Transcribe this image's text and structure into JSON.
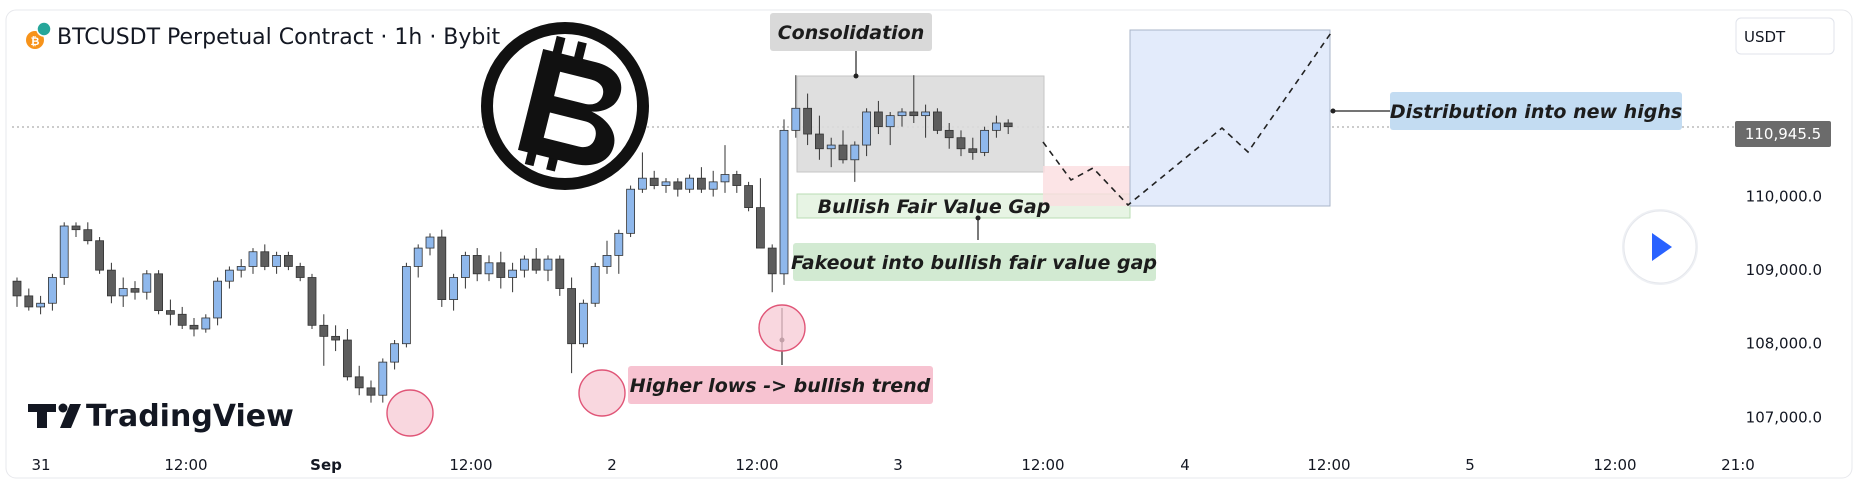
{
  "header": {
    "title": "BTCUSDT Perpetual Contract · 1h · Bybit",
    "currency_button": "USDT"
  },
  "logo": {
    "text": "TradingView"
  },
  "chart_data": {
    "type": "candlestick",
    "symbol": "BTCUSDT",
    "timeframe": "1h",
    "exchange": "Bybit",
    "x_ticks": [
      "31",
      "12:00",
      "Sep",
      "12:00",
      "2",
      "12:00",
      "3",
      "12:00",
      "4",
      "12:00",
      "5",
      "12:00",
      "21:0"
    ],
    "y_ticks": [
      "110,000.0",
      "109,000.0",
      "108,000.0",
      "107,000.0"
    ],
    "last_price_label": "110,945.5",
    "last_price": 110945.5,
    "y_range": [
      106800,
      112400
    ],
    "colors": {
      "up": "#8fb8ec",
      "down": "#5d5d5d",
      "wick": "#333333"
    },
    "candles": [
      [
        108850,
        108900,
        108500,
        108650
      ],
      [
        108650,
        108750,
        108450,
        108500
      ],
      [
        108500,
        108650,
        108400,
        108550
      ],
      [
        108550,
        108950,
        108450,
        108900
      ],
      [
        108900,
        109650,
        108800,
        109600
      ],
      [
        109600,
        109650,
        109450,
        109550
      ],
      [
        109550,
        109650,
        109350,
        109400
      ],
      [
        109400,
        109450,
        108950,
        109000
      ],
      [
        109000,
        109100,
        108550,
        108650
      ],
      [
        108650,
        108900,
        108500,
        108750
      ],
      [
        108750,
        108850,
        108600,
        108700
      ],
      [
        108700,
        109000,
        108600,
        108950
      ],
      [
        108950,
        109000,
        108400,
        108450
      ],
      [
        108450,
        108600,
        108250,
        108400
      ],
      [
        108400,
        108500,
        108200,
        108250
      ],
      [
        108250,
        108350,
        108100,
        108200
      ],
      [
        108200,
        108400,
        108150,
        108350
      ],
      [
        108350,
        108900,
        108250,
        108850
      ],
      [
        108850,
        109050,
        108750,
        109000
      ],
      [
        109000,
        109150,
        108900,
        109050
      ],
      [
        109050,
        109300,
        108950,
        109250
      ],
      [
        109250,
        109350,
        109000,
        109050
      ],
      [
        109050,
        109250,
        108950,
        109200
      ],
      [
        109200,
        109250,
        109000,
        109050
      ],
      [
        109050,
        109100,
        108850,
        108900
      ],
      [
        108900,
        108950,
        108200,
        108250
      ],
      [
        108250,
        108400,
        107700,
        108100
      ],
      [
        108100,
        108250,
        107900,
        108050
      ],
      [
        108050,
        108200,
        107500,
        107550
      ],
      [
        107550,
        107700,
        107300,
        107400
      ],
      [
        107400,
        107500,
        107200,
        107300
      ],
      [
        107300,
        107800,
        107200,
        107750
      ],
      [
        107750,
        108050,
        107650,
        108000
      ],
      [
        108000,
        109100,
        107950,
        109050
      ],
      [
        109050,
        109350,
        108900,
        109300
      ],
      [
        109300,
        109500,
        109200,
        109450
      ],
      [
        109450,
        109550,
        108500,
        108600
      ],
      [
        108600,
        108950,
        108450,
        108900
      ],
      [
        108900,
        109250,
        108750,
        109200
      ],
      [
        109200,
        109300,
        108850,
        108950
      ],
      [
        108950,
        109200,
        108850,
        109100
      ],
      [
        109100,
        109250,
        108750,
        108900
      ],
      [
        108900,
        109100,
        108700,
        109000
      ],
      [
        109000,
        109200,
        108900,
        109150
      ],
      [
        109150,
        109300,
        108950,
        109000
      ],
      [
        109000,
        109200,
        108850,
        109150
      ],
      [
        109150,
        109200,
        108650,
        108750
      ],
      [
        108750,
        108900,
        107600,
        108000
      ],
      [
        108000,
        108600,
        107950,
        108550
      ],
      [
        108550,
        109100,
        108500,
        109050
      ],
      [
        109050,
        109400,
        108950,
        109200
      ],
      [
        109200,
        109550,
        108950,
        109500
      ],
      [
        109500,
        110150,
        109450,
        110100
      ],
      [
        110100,
        110600,
        110050,
        110250
      ],
      [
        110250,
        110350,
        110100,
        110150
      ],
      [
        110150,
        110250,
        110050,
        110200
      ],
      [
        110200,
        110250,
        110000,
        110100
      ],
      [
        110100,
        110300,
        110050,
        110250
      ],
      [
        110250,
        110400,
        110050,
        110100
      ],
      [
        110100,
        110350,
        110000,
        110200
      ],
      [
        110200,
        110700,
        110050,
        110300
      ],
      [
        110300,
        110350,
        110050,
        110150
      ],
      [
        110150,
        110200,
        109800,
        109850
      ],
      [
        109850,
        110250,
        109300,
        109300
      ],
      [
        109300,
        109350,
        108700,
        108950
      ],
      [
        108950,
        111050,
        108800,
        110900
      ],
      [
        110900,
        111650,
        110800,
        111200
      ],
      [
        111200,
        111400,
        110700,
        110850
      ],
      [
        110850,
        111100,
        110500,
        110650
      ],
      [
        110650,
        110800,
        110400,
        110700
      ],
      [
        110700,
        110900,
        110450,
        110500
      ],
      [
        110500,
        110750,
        110200,
        110700
      ],
      [
        110700,
        111200,
        110550,
        111150
      ],
      [
        111150,
        111300,
        110850,
        110950
      ],
      [
        110950,
        111150,
        110700,
        111100
      ],
      [
        111100,
        111200,
        110950,
        111150
      ],
      [
        111150,
        111650,
        111000,
        111100
      ],
      [
        111100,
        111250,
        110800,
        111150
      ],
      [
        111150,
        111200,
        110850,
        110900
      ],
      [
        110900,
        111000,
        110650,
        110800
      ],
      [
        110800,
        110900,
        110550,
        110650
      ],
      [
        110650,
        110800,
        110500,
        110600
      ],
      [
        110600,
        110950,
        110550,
        110900
      ],
      [
        110900,
        111100,
        110800,
        111000
      ],
      [
        111000,
        111050,
        110850,
        110950
      ]
    ],
    "annotations": [
      {
        "label": "Consolidation",
        "bg": "#d9d9d9"
      },
      {
        "label": "Bullish Fair Value Gap",
        "bg": "none"
      },
      {
        "label": "Fakeout into bullish fair value gap",
        "bg": "#d2ead2"
      },
      {
        "label": "Higher lows -> bullish trend",
        "bg": "#f7c3d1"
      },
      {
        "label": "Distribution into new highs",
        "bg": "#c3dcf2"
      }
    ]
  }
}
